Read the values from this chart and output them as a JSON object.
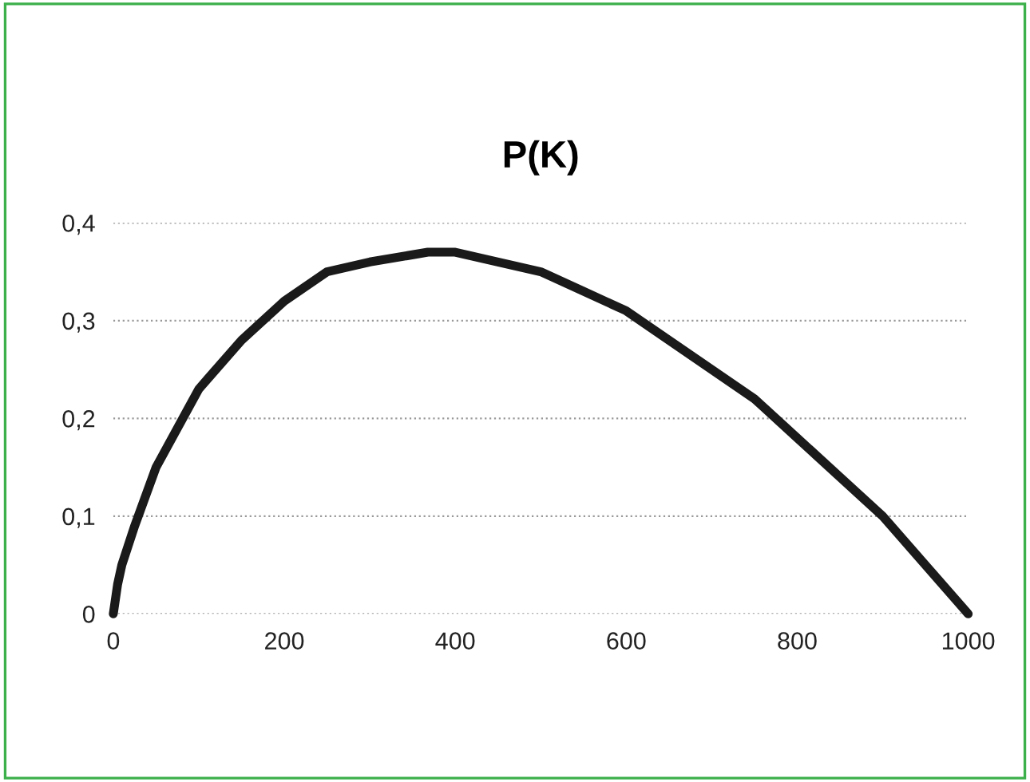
{
  "chart_data": {
    "type": "line",
    "title": "P(K)",
    "x": [
      0,
      5,
      10,
      25,
      50,
      75,
      100,
      150,
      200,
      250,
      300,
      368,
      400,
      450,
      500,
      550,
      600,
      650,
      700,
      750,
      800,
      850,
      900,
      950,
      1000
    ],
    "series": [
      {
        "color": "#1a1a1a",
        "values": [
          0,
          0.03,
          0.05,
          0.09,
          0.15,
          0.19,
          0.23,
          0.28,
          0.32,
          0.35,
          0.36,
          0.37,
          0.37,
          0.36,
          0.35,
          0.33,
          0.31,
          0.28,
          0.25,
          0.22,
          0.18,
          0.14,
          0.1,
          0.05,
          0
        ]
      }
    ],
    "xlim": [
      0,
      1000
    ],
    "xticks": [
      0,
      200,
      400,
      600,
      800,
      1000
    ],
    "ylim": [
      0,
      0.4
    ],
    "yticks": [
      {
        "value": 0,
        "label": "0"
      },
      {
        "value": 0.1,
        "label": "0,1"
      },
      {
        "value": 0.2,
        "label": "0,2"
      },
      {
        "value": 0.3,
        "label": "0,3"
      },
      {
        "value": 0.4,
        "label": "0,4"
      }
    ],
    "grid": "y",
    "marker": "none",
    "line_style": "solid"
  }
}
